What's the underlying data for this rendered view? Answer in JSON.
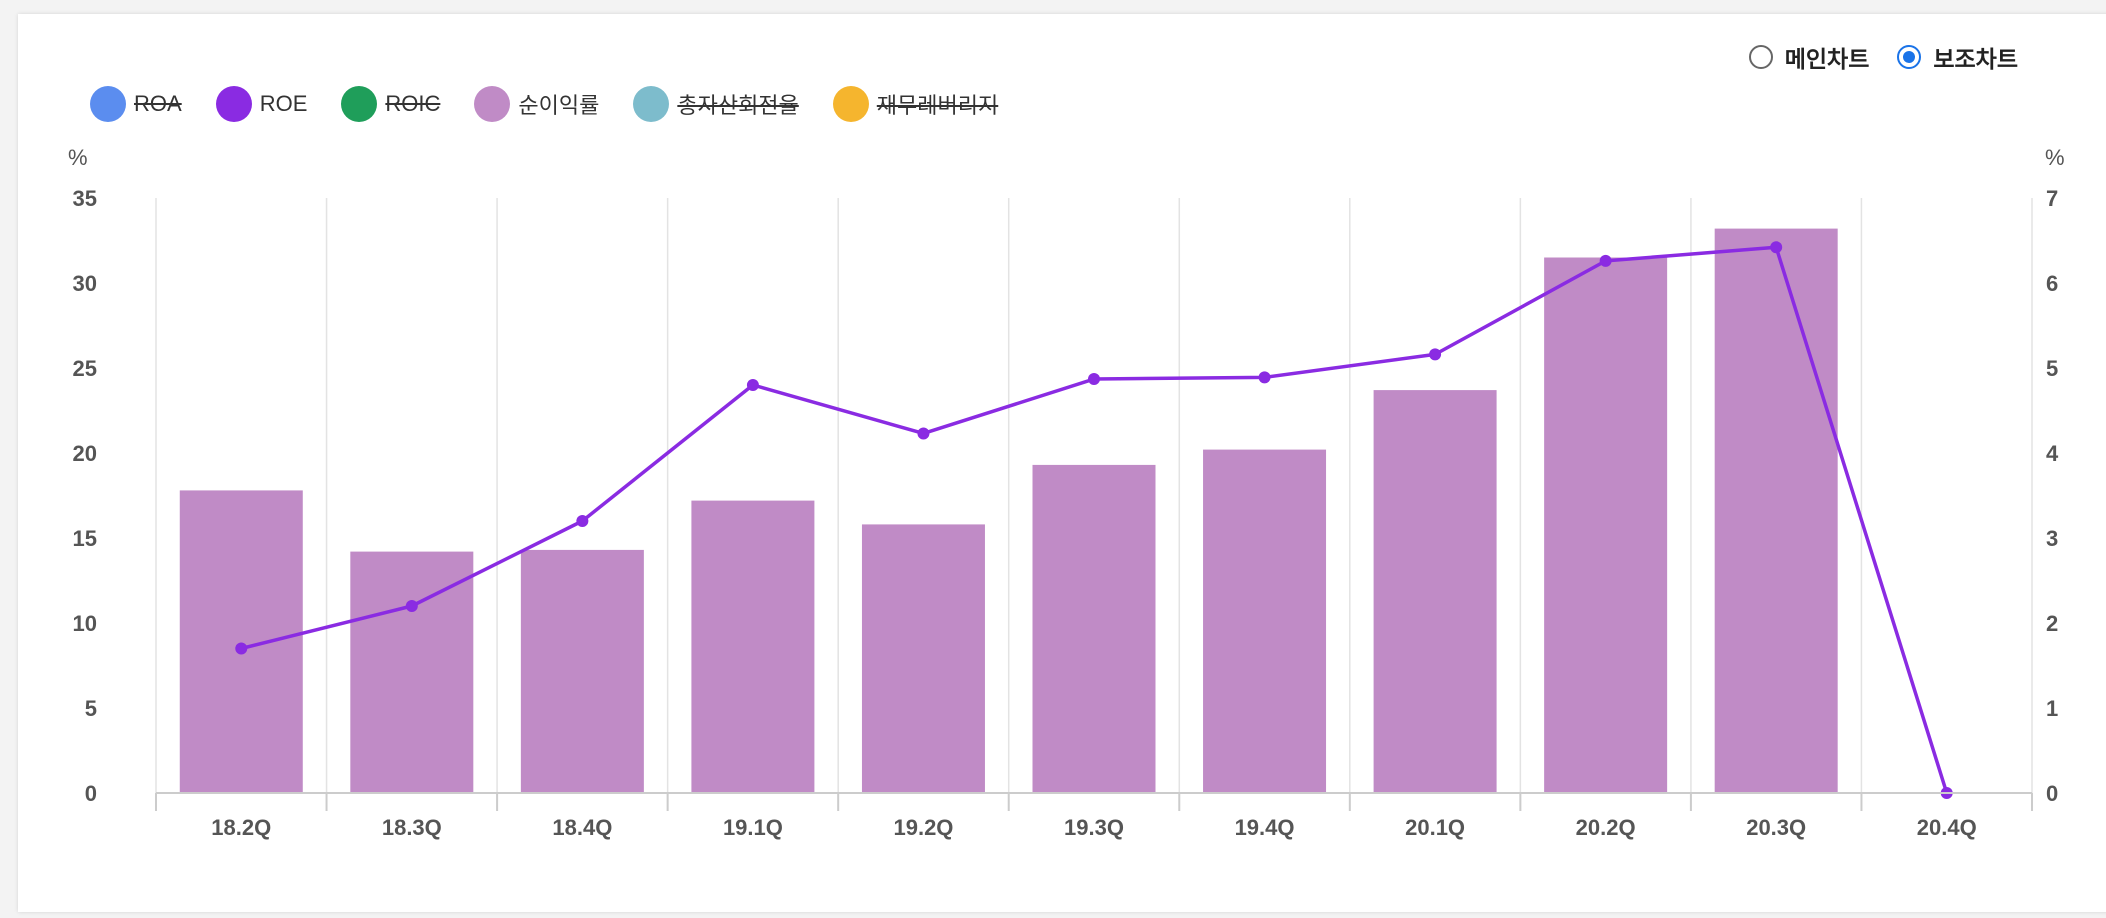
{
  "toggle": {
    "options": [
      {
        "label": "메인차트",
        "checked": false
      },
      {
        "label": "보조차트",
        "checked": true
      }
    ]
  },
  "legend": [
    {
      "label": "ROA",
      "color": "#5b8def",
      "active": false
    },
    {
      "label": "ROE",
      "color": "#8a2be2",
      "active": true
    },
    {
      "label": "ROIC",
      "color": "#1f9e5a",
      "active": false
    },
    {
      "label": "순이익률",
      "color": "#c08bc6",
      "active": true
    },
    {
      "label": "총자산회전율",
      "color": "#7dbccc",
      "active": false
    },
    {
      "label": "재무레버리지",
      "color": "#f5b52e",
      "active": false
    }
  ],
  "chart_data": {
    "type": "bar",
    "categories": [
      "18.2Q",
      "18.3Q",
      "18.4Q",
      "19.1Q",
      "19.2Q",
      "19.3Q",
      "19.4Q",
      "20.1Q",
      "20.2Q",
      "20.3Q",
      "20.4Q"
    ],
    "left_axis": {
      "unit": "%",
      "ylim": [
        0,
        35
      ],
      "ticks": [
        0,
        5,
        10,
        15,
        20,
        25,
        30,
        35
      ]
    },
    "right_axis": {
      "unit": "%",
      "ylim": [
        0,
        7
      ],
      "ticks": [
        0,
        1,
        2,
        3,
        4,
        5,
        6,
        7
      ]
    },
    "series": [
      {
        "name": "순이익률",
        "type": "bar",
        "axis": "left",
        "color": "#c08bc6",
        "values": [
          17.8,
          14.2,
          14.3,
          17.2,
          15.8,
          19.3,
          20.2,
          23.7,
          31.5,
          33.2,
          null
        ]
      },
      {
        "name": "ROE",
        "type": "line",
        "axis": "right",
        "color": "#8a2be2",
        "values": [
          1.7,
          2.2,
          3.2,
          4.8,
          4.23,
          4.87,
          4.89,
          5.16,
          6.26,
          6.42,
          0
        ]
      }
    ],
    "grid": "vertical"
  }
}
